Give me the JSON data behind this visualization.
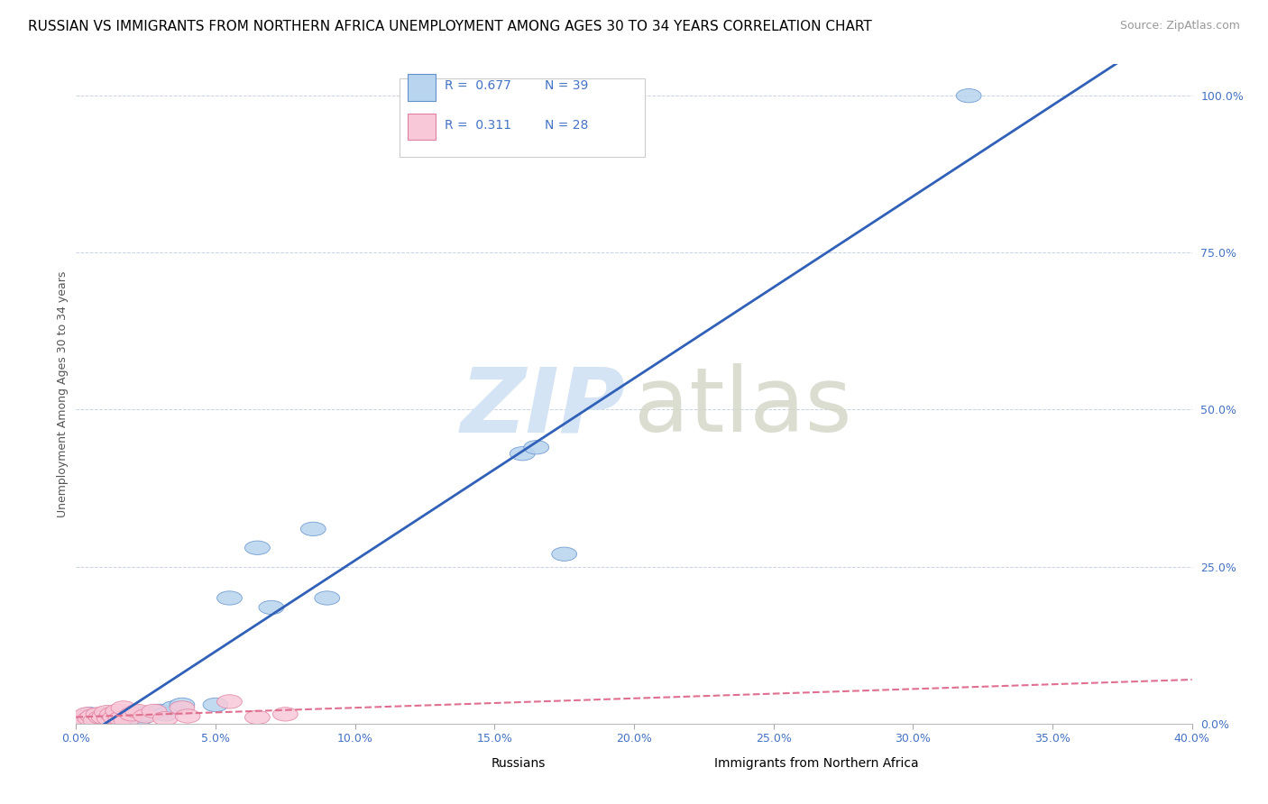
{
  "title": "RUSSIAN VS IMMIGRANTS FROM NORTHERN AFRICA UNEMPLOYMENT AMONG AGES 30 TO 34 YEARS CORRELATION CHART",
  "source": "Source: ZipAtlas.com",
  "ylabel": "Unemployment Among Ages 30 to 34 years",
  "xlim": [
    0.0,
    0.4
  ],
  "ylim": [
    0.0,
    1.05
  ],
  "xticks": [
    0.0,
    0.05,
    0.1,
    0.15,
    0.2,
    0.25,
    0.3,
    0.35,
    0.4
  ],
  "yticks_right": [
    0.0,
    0.25,
    0.5,
    0.75,
    1.0
  ],
  "ytick_labels_right": [
    "0.0%",
    "25.0%",
    "50.0%",
    "75.0%",
    "100.0%"
  ],
  "xtick_labels": [
    "0.0%",
    "5.0%",
    "10.0%",
    "15.0%",
    "20.0%",
    "25.0%",
    "30.0%",
    "35.0%",
    "40.0%"
  ],
  "russians_R": 0.677,
  "russians_N": 39,
  "immigrants_R": 0.311,
  "immigrants_N": 28,
  "russian_color": "#b8d4ee",
  "russian_edge_color": "#6090cc",
  "immigrant_color": "#f8c8d8",
  "immigrant_edge_color": "#e080a0",
  "russian_line_color": "#3060b8",
  "immigrant_line_color": "#e07090",
  "watermark_zip_color": "#d4e4f4",
  "watermark_atlas_color": "#d4d8c8",
  "legend_color": "#4472c4",
  "grid_color": "#c8d4e4",
  "background_color": "#ffffff",
  "title_fontsize": 11,
  "source_fontsize": 9,
  "russians_x": [
    0.001,
    0.002,
    0.003,
    0.004,
    0.005,
    0.005,
    0.006,
    0.007,
    0.008,
    0.009,
    0.01,
    0.011,
    0.012,
    0.013,
    0.014,
    0.015,
    0.016,
    0.017,
    0.018,
    0.019,
    0.02,
    0.021,
    0.022,
    0.023,
    0.025,
    0.03,
    0.032,
    0.035,
    0.038,
    0.05,
    0.055,
    0.065,
    0.07,
    0.085,
    0.09,
    0.16,
    0.165,
    0.175,
    0.32
  ],
  "russians_y": [
    0.005,
    0.008,
    0.005,
    0.01,
    0.005,
    0.015,
    0.008,
    0.012,
    0.01,
    0.005,
    0.01,
    0.015,
    0.008,
    0.012,
    0.01,
    0.005,
    0.015,
    0.008,
    0.01,
    0.012,
    0.015,
    0.01,
    0.018,
    0.008,
    0.015,
    0.02,
    0.015,
    0.025,
    0.03,
    0.03,
    0.2,
    0.28,
    0.185,
    0.31,
    0.2,
    0.43,
    0.44,
    0.27,
    1.0
  ],
  "immigrants_x": [
    0.001,
    0.002,
    0.003,
    0.004,
    0.005,
    0.006,
    0.007,
    0.008,
    0.009,
    0.01,
    0.011,
    0.012,
    0.013,
    0.014,
    0.015,
    0.016,
    0.017,
    0.018,
    0.02,
    0.022,
    0.025,
    0.028,
    0.032,
    0.038,
    0.04,
    0.055,
    0.065,
    0.075
  ],
  "immigrants_y": [
    0.005,
    0.01,
    0.005,
    0.015,
    0.008,
    0.012,
    0.005,
    0.015,
    0.01,
    0.01,
    0.018,
    0.008,
    0.015,
    0.01,
    0.02,
    0.008,
    0.025,
    0.005,
    0.015,
    0.02,
    0.012,
    0.02,
    0.008,
    0.025,
    0.012,
    0.035,
    0.01,
    0.015
  ]
}
